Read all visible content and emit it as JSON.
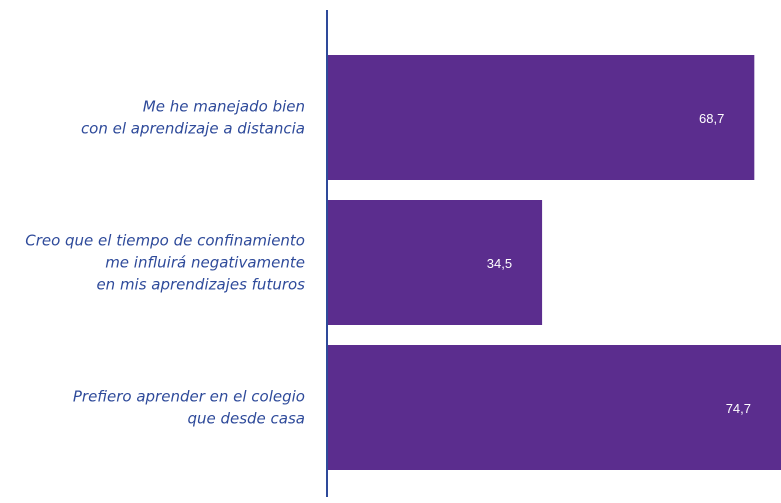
{
  "chart_data": {
    "type": "hbar",
    "categories": [
      [
        "Me he manejado bien",
        "con el aprendizaje a distancia"
      ],
      [
        "Creo que el tiempo de confinamiento",
        "me influirá negativamente",
        "en mis aprendizajes futuros"
      ],
      [
        "Prefiero aprender en el colegio",
        "que desde casa"
      ]
    ],
    "values": [
      68.7,
      34.5,
      74.7
    ],
    "value_labels": [
      "68,7",
      "34,5",
      "74,7"
    ],
    "color": "#5b2d8e",
    "xlim": [
      0,
      73
    ]
  }
}
